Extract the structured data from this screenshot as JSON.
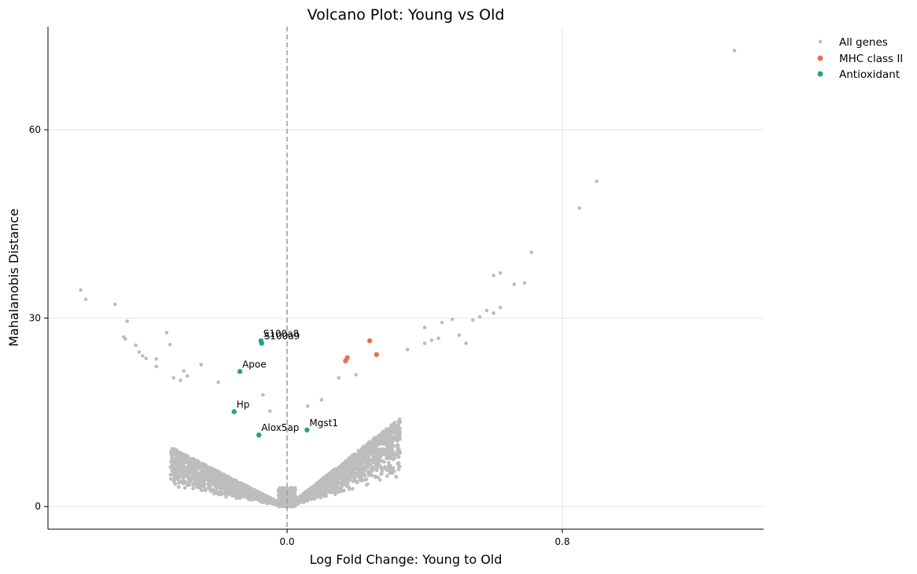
{
  "chart_data": {
    "type": "scatter",
    "title": "Volcano Plot: Young vs Old",
    "xlabel": "Log Fold Change: Young to Old",
    "ylabel": "Mahalanobis Distance",
    "xlim": [
      -0.695,
      1.385
    ],
    "ylim": [
      -3.6,
      76.4
    ],
    "xticks": [
      {
        "value": 0.0,
        "label": "0.0"
      },
      {
        "value": 0.8,
        "label": "0.8"
      }
    ],
    "yticks": [
      {
        "value": 0,
        "label": "0"
      },
      {
        "value": 30,
        "label": "30"
      },
      {
        "value": 60,
        "label": "60"
      }
    ],
    "grid": true,
    "reference_line_x": 0.0,
    "legend_position": "outside-top-right",
    "colors": {
      "all_genes": "#bdbdbd",
      "mhc_class_ii": "#e76f51",
      "antioxidant": "#2a9d8f",
      "reference_line": "#999999",
      "grid": "#e5e5e5"
    },
    "series": [
      {
        "name": "All genes",
        "note_background_cloud": "dense V-shaped cloud of several thousand genes approximately bounded by y ≈ 28·|x| (left) and y ≈ 43·|x| (right), concentrated near origin",
        "points": [
          [
            -0.6,
            34.5
          ],
          [
            -0.585,
            33.0
          ],
          [
            -0.5,
            32.2
          ],
          [
            -0.465,
            29.5
          ],
          [
            -0.475,
            27.0
          ],
          [
            -0.47,
            26.7
          ],
          [
            -0.44,
            25.7
          ],
          [
            -0.43,
            24.6
          ],
          [
            -0.42,
            24.0
          ],
          [
            -0.41,
            23.6
          ],
          [
            -0.38,
            23.5
          ],
          [
            -0.38,
            22.3
          ],
          [
            -0.35,
            27.7
          ],
          [
            -0.34,
            25.8
          ],
          [
            -0.3,
            21.6
          ],
          [
            -0.29,
            20.8
          ],
          [
            -0.31,
            20.1
          ],
          [
            -0.33,
            20.5
          ],
          [
            -0.25,
            22.6
          ],
          [
            -0.2,
            19.8
          ],
          [
            -0.07,
            17.8
          ],
          [
            -0.05,
            15.2
          ],
          [
            0.06,
            16.0
          ],
          [
            0.1,
            17.0
          ],
          [
            0.15,
            20.5
          ],
          [
            0.2,
            21.0
          ],
          [
            0.35,
            25.0
          ],
          [
            0.4,
            26.0
          ],
          [
            0.42,
            26.5
          ],
          [
            0.44,
            26.8
          ],
          [
            0.4,
            28.5
          ],
          [
            0.45,
            29.3
          ],
          [
            0.48,
            29.8
          ],
          [
            0.5,
            27.3
          ],
          [
            0.52,
            26.0
          ],
          [
            0.54,
            29.7
          ],
          [
            0.56,
            30.2
          ],
          [
            0.58,
            31.2
          ],
          [
            0.6,
            30.8
          ],
          [
            0.62,
            31.7
          ],
          [
            0.6,
            36.8
          ],
          [
            0.62,
            37.2
          ],
          [
            0.66,
            35.4
          ],
          [
            0.69,
            35.6
          ],
          [
            0.71,
            40.5
          ],
          [
            0.85,
            47.5
          ],
          [
            0.9,
            51.8
          ],
          [
            1.3,
            72.6
          ]
        ]
      },
      {
        "name": "MHC class II",
        "points": [
          [
            0.17,
            23.2
          ],
          [
            0.175,
            23.7
          ],
          [
            0.24,
            26.4
          ],
          [
            0.26,
            24.2
          ]
        ]
      },
      {
        "name": "Antioxidant",
        "points": [
          {
            "label": "S100a8",
            "x": -0.076,
            "y": 26.4
          },
          {
            "label": "S100a9",
            "x": -0.074,
            "y": 26.0
          },
          {
            "label": "Apoe",
            "x": -0.137,
            "y": 21.5
          },
          {
            "label": "Hp",
            "x": -0.154,
            "y": 15.1
          },
          {
            "label": "Alox5ap",
            "x": -0.082,
            "y": 11.4
          },
          {
            "label": "Mgst1",
            "x": 0.058,
            "y": 12.2
          }
        ]
      }
    ]
  }
}
